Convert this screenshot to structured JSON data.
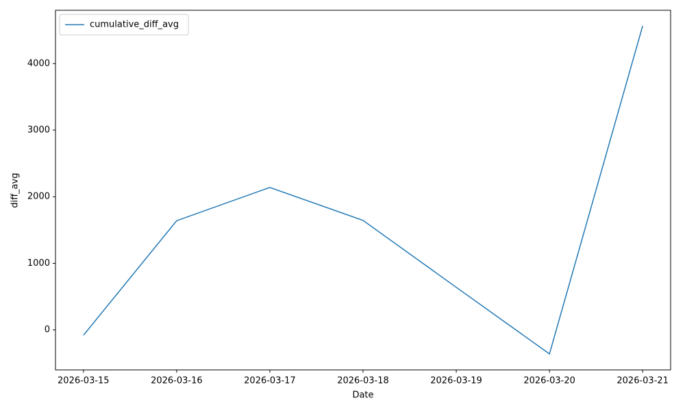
{
  "chart_data": {
    "type": "line",
    "x_label": "Date",
    "y_label": "diff_avg",
    "categories": [
      "2026-03-15",
      "2026-03-16",
      "2026-03-17",
      "2026-03-18",
      "2026-03-19",
      "2026-03-20",
      "2026-03-21"
    ],
    "series": [
      {
        "name": "cumulative_diff_avg",
        "color": "#1f77b4",
        "values": [
          -80,
          1640,
          2140,
          1645,
          640,
          -360,
          4565
        ]
      }
    ],
    "ylim": [
      -600,
      4800
    ],
    "yticks": [
      0,
      1000,
      2000,
      3000,
      4000
    ],
    "grid": false,
    "legend": "upper left"
  }
}
